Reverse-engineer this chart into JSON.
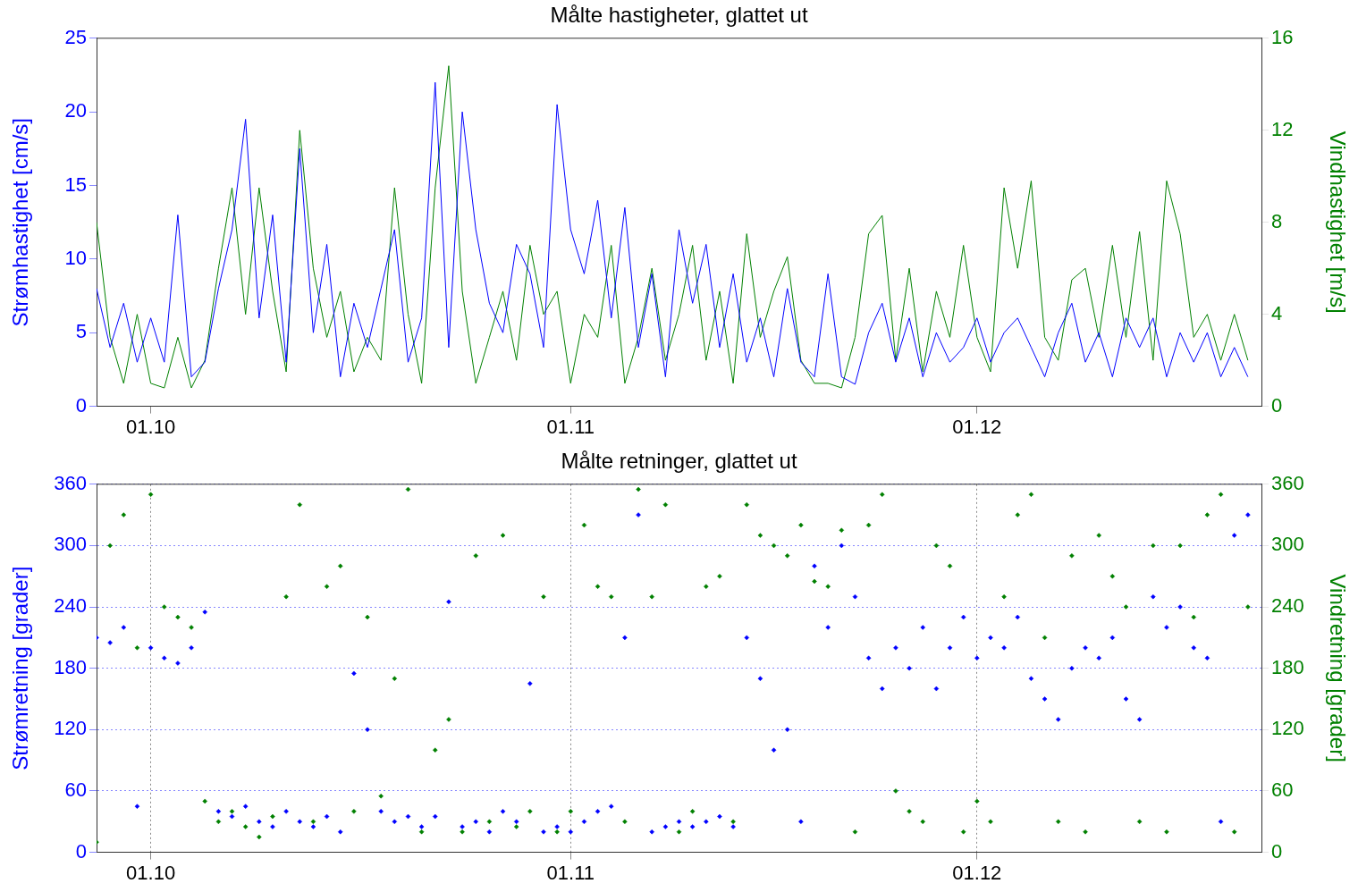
{
  "chart_data": [
    {
      "type": "line",
      "title": "Målte hastigheter, glattet ut",
      "ylabel": "Strømhastighet [cm/s]",
      "y2label": "Vindhastighet [m/s]",
      "x": [
        "--09-27",
        "--09-28",
        "--09-29",
        "--09-30",
        "--10-01",
        "--10-02",
        "--10-03",
        "--10-04",
        "--10-05",
        "--10-06",
        "--10-07",
        "--10-08",
        "--10-09",
        "--10-10",
        "--10-11",
        "--10-12",
        "--10-13",
        "--10-14",
        "--10-15",
        "--10-16",
        "--10-17",
        "--10-18",
        "--10-19",
        "--10-20",
        "--10-21",
        "--10-22",
        "--10-23",
        "--10-24",
        "--10-25",
        "--10-26",
        "--10-27",
        "--10-28",
        "--10-29",
        "--10-30",
        "--10-31",
        "--11-01",
        "--11-02",
        "--11-03",
        "--11-04",
        "--11-05",
        "--11-06",
        "--11-07",
        "--11-08",
        "--11-09",
        "--11-10",
        "--11-11",
        "--11-12",
        "--11-13",
        "--11-14",
        "--11-15",
        "--11-16",
        "--11-17",
        "--11-18",
        "--11-19",
        "--11-20",
        "--11-21",
        "--11-22",
        "--11-23",
        "--11-24",
        "--11-25",
        "--11-26",
        "--11-27",
        "--11-28",
        "--11-29",
        "--11-30",
        "--12-01",
        "--12-02",
        "--12-03",
        "--12-04",
        "--12-05",
        "--12-06",
        "--12-07",
        "--12-08",
        "--12-09",
        "--12-10",
        "--12-11",
        "--12-12",
        "--12-13",
        "--12-14",
        "--12-15",
        "--12-16",
        "--12-17",
        "--12-18",
        "--12-19",
        "--12-20",
        "--12-21"
      ],
      "xlim": [
        "--09-27",
        "--12-22"
      ],
      "xticks": [
        {
          "value": "--10-01",
          "label": "01.10"
        },
        {
          "value": "--11-01",
          "label": "01.11"
        },
        {
          "value": "--12-01",
          "label": "01.12"
        }
      ],
      "ylim": [
        0,
        25
      ],
      "yticks": [
        0,
        5,
        10,
        15,
        20,
        25
      ],
      "y2lim": [
        0,
        16
      ],
      "y2ticks": [
        0,
        4,
        8,
        12,
        16
      ],
      "series": [
        {
          "color": "#0000ff",
          "values": [
            8,
            4,
            7,
            3,
            6,
            3,
            13,
            2,
            3,
            8,
            12,
            19.5,
            6,
            13,
            3,
            17.5,
            5,
            11,
            2,
            7,
            4,
            8,
            12,
            3,
            6,
            22,
            4,
            20,
            12,
            7,
            5,
            11,
            9,
            4,
            20.5,
            12,
            9,
            14,
            6,
            13.5,
            4,
            9,
            2,
            12,
            7,
            11,
            4,
            9,
            3,
            6,
            2,
            8,
            3,
            2,
            9,
            2,
            1.5,
            5,
            7,
            3,
            6,
            2,
            5,
            3,
            4,
            6,
            3,
            5,
            6,
            4,
            2,
            5,
            7,
            3,
            5,
            2,
            6,
            4,
            6,
            2,
            5,
            3,
            5,
            2,
            4,
            2
          ]
        },
        {
          "color": "#008000",
          "axis": "y2",
          "values": [
            8,
            3,
            1,
            4,
            1,
            0.8,
            3,
            0.8,
            2,
            6,
            9.5,
            4,
            9.5,
            5,
            1.5,
            12,
            6,
            3,
            5,
            1.5,
            3,
            2,
            9.5,
            4,
            1,
            9.5,
            14.8,
            5,
            1,
            3,
            5,
            2,
            7,
            4,
            5,
            1,
            4,
            3,
            7,
            1,
            3,
            6,
            2,
            4,
            7,
            2,
            5,
            1,
            7.5,
            3,
            5,
            6.5,
            2,
            1,
            1,
            0.8,
            3,
            7.5,
            8.3,
            2,
            6,
            1.5,
            5,
            3,
            7,
            3,
            1.5,
            9.5,
            6,
            9.8,
            3,
            2,
            5.5,
            6,
            3,
            7,
            3,
            7.6,
            2,
            9.8,
            7.5,
            3,
            4,
            2,
            4,
            2
          ]
        }
      ]
    },
    {
      "type": "scatter",
      "title": "Målte retninger, glattet ut",
      "ylabel": "Strømretning [grader]",
      "y2label": "Vindretning [grader]",
      "marker": "diamond",
      "grid": true,
      "x": [
        "--09-27",
        "--09-28",
        "--09-29",
        "--09-30",
        "--10-01",
        "--10-02",
        "--10-03",
        "--10-04",
        "--10-05",
        "--10-06",
        "--10-07",
        "--10-08",
        "--10-09",
        "--10-10",
        "--10-11",
        "--10-12",
        "--10-13",
        "--10-14",
        "--10-15",
        "--10-16",
        "--10-17",
        "--10-18",
        "--10-19",
        "--10-20",
        "--10-21",
        "--10-22",
        "--10-23",
        "--10-24",
        "--10-25",
        "--10-26",
        "--10-27",
        "--10-28",
        "--10-29",
        "--10-30",
        "--10-31",
        "--11-01",
        "--11-02",
        "--11-03",
        "--11-04",
        "--11-05",
        "--11-06",
        "--11-07",
        "--11-08",
        "--11-09",
        "--11-10",
        "--11-11",
        "--11-12",
        "--11-13",
        "--11-14",
        "--11-15",
        "--11-16",
        "--11-17",
        "--11-18",
        "--11-19",
        "--11-20",
        "--11-21",
        "--11-22",
        "--11-23",
        "--11-24",
        "--11-25",
        "--11-26",
        "--11-27",
        "--11-28",
        "--11-29",
        "--11-30",
        "--12-01",
        "--12-02",
        "--12-03",
        "--12-04",
        "--12-05",
        "--12-06",
        "--12-07",
        "--12-08",
        "--12-09",
        "--12-10",
        "--12-11",
        "--12-12",
        "--12-13",
        "--12-14",
        "--12-15",
        "--12-16",
        "--12-17",
        "--12-18",
        "--12-19",
        "--12-20",
        "--12-21"
      ],
      "xlim": [
        "--09-27",
        "--12-22"
      ],
      "xticks": [
        {
          "value": "--10-01",
          "label": "01.10"
        },
        {
          "value": "--11-01",
          "label": "01.11"
        },
        {
          "value": "--12-01",
          "label": "01.12"
        }
      ],
      "ylim": [
        0,
        360
      ],
      "yticks": [
        0,
        60,
        120,
        180,
        240,
        300,
        360
      ],
      "y2lim": [
        0,
        360
      ],
      "y2ticks": [
        0,
        60,
        120,
        180,
        240,
        300,
        360
      ],
      "series": [
        {
          "color": "#0000ff",
          "values": [
            210,
            205,
            220,
            45,
            200,
            190,
            185,
            200,
            235,
            40,
            35,
            45,
            30,
            25,
            40,
            30,
            25,
            35,
            20,
            175,
            120,
            40,
            30,
            35,
            25,
            35,
            245,
            25,
            30,
            20,
            40,
            30,
            165,
            20,
            25,
            20,
            30,
            40,
            45,
            210,
            330,
            20,
            25,
            30,
            25,
            30,
            35,
            25,
            210,
            170,
            100,
            120,
            30,
            280,
            220,
            300,
            250,
            190,
            160,
            200,
            180,
            220,
            160,
            200,
            230,
            190,
            210,
            200,
            230,
            170,
            150,
            130,
            180,
            200,
            190,
            210,
            150,
            130,
            250,
            220,
            240,
            200,
            190,
            30,
            310,
            330
          ]
        },
        {
          "color": "#008000",
          "axis": "y2",
          "values": [
            10,
            300,
            330,
            200,
            350,
            240,
            230,
            220,
            50,
            30,
            40,
            25,
            15,
            35,
            250,
            340,
            30,
            260,
            280,
            40,
            230,
            55,
            170,
            355,
            20,
            100,
            130,
            20,
            290,
            30,
            310,
            25,
            40,
            250,
            20,
            40,
            320,
            260,
            250,
            30,
            355,
            250,
            340,
            20,
            40,
            260,
            270,
            30,
            340,
            310,
            300,
            290,
            320,
            265,
            260,
            315,
            20,
            320,
            350,
            60,
            40,
            30,
            300,
            280,
            20,
            50,
            30,
            250,
            330,
            350,
            210,
            30,
            290,
            20,
            310,
            270,
            240,
            30,
            300,
            20,
            300,
            230,
            330,
            350,
            20,
            240
          ]
        }
      ]
    }
  ]
}
